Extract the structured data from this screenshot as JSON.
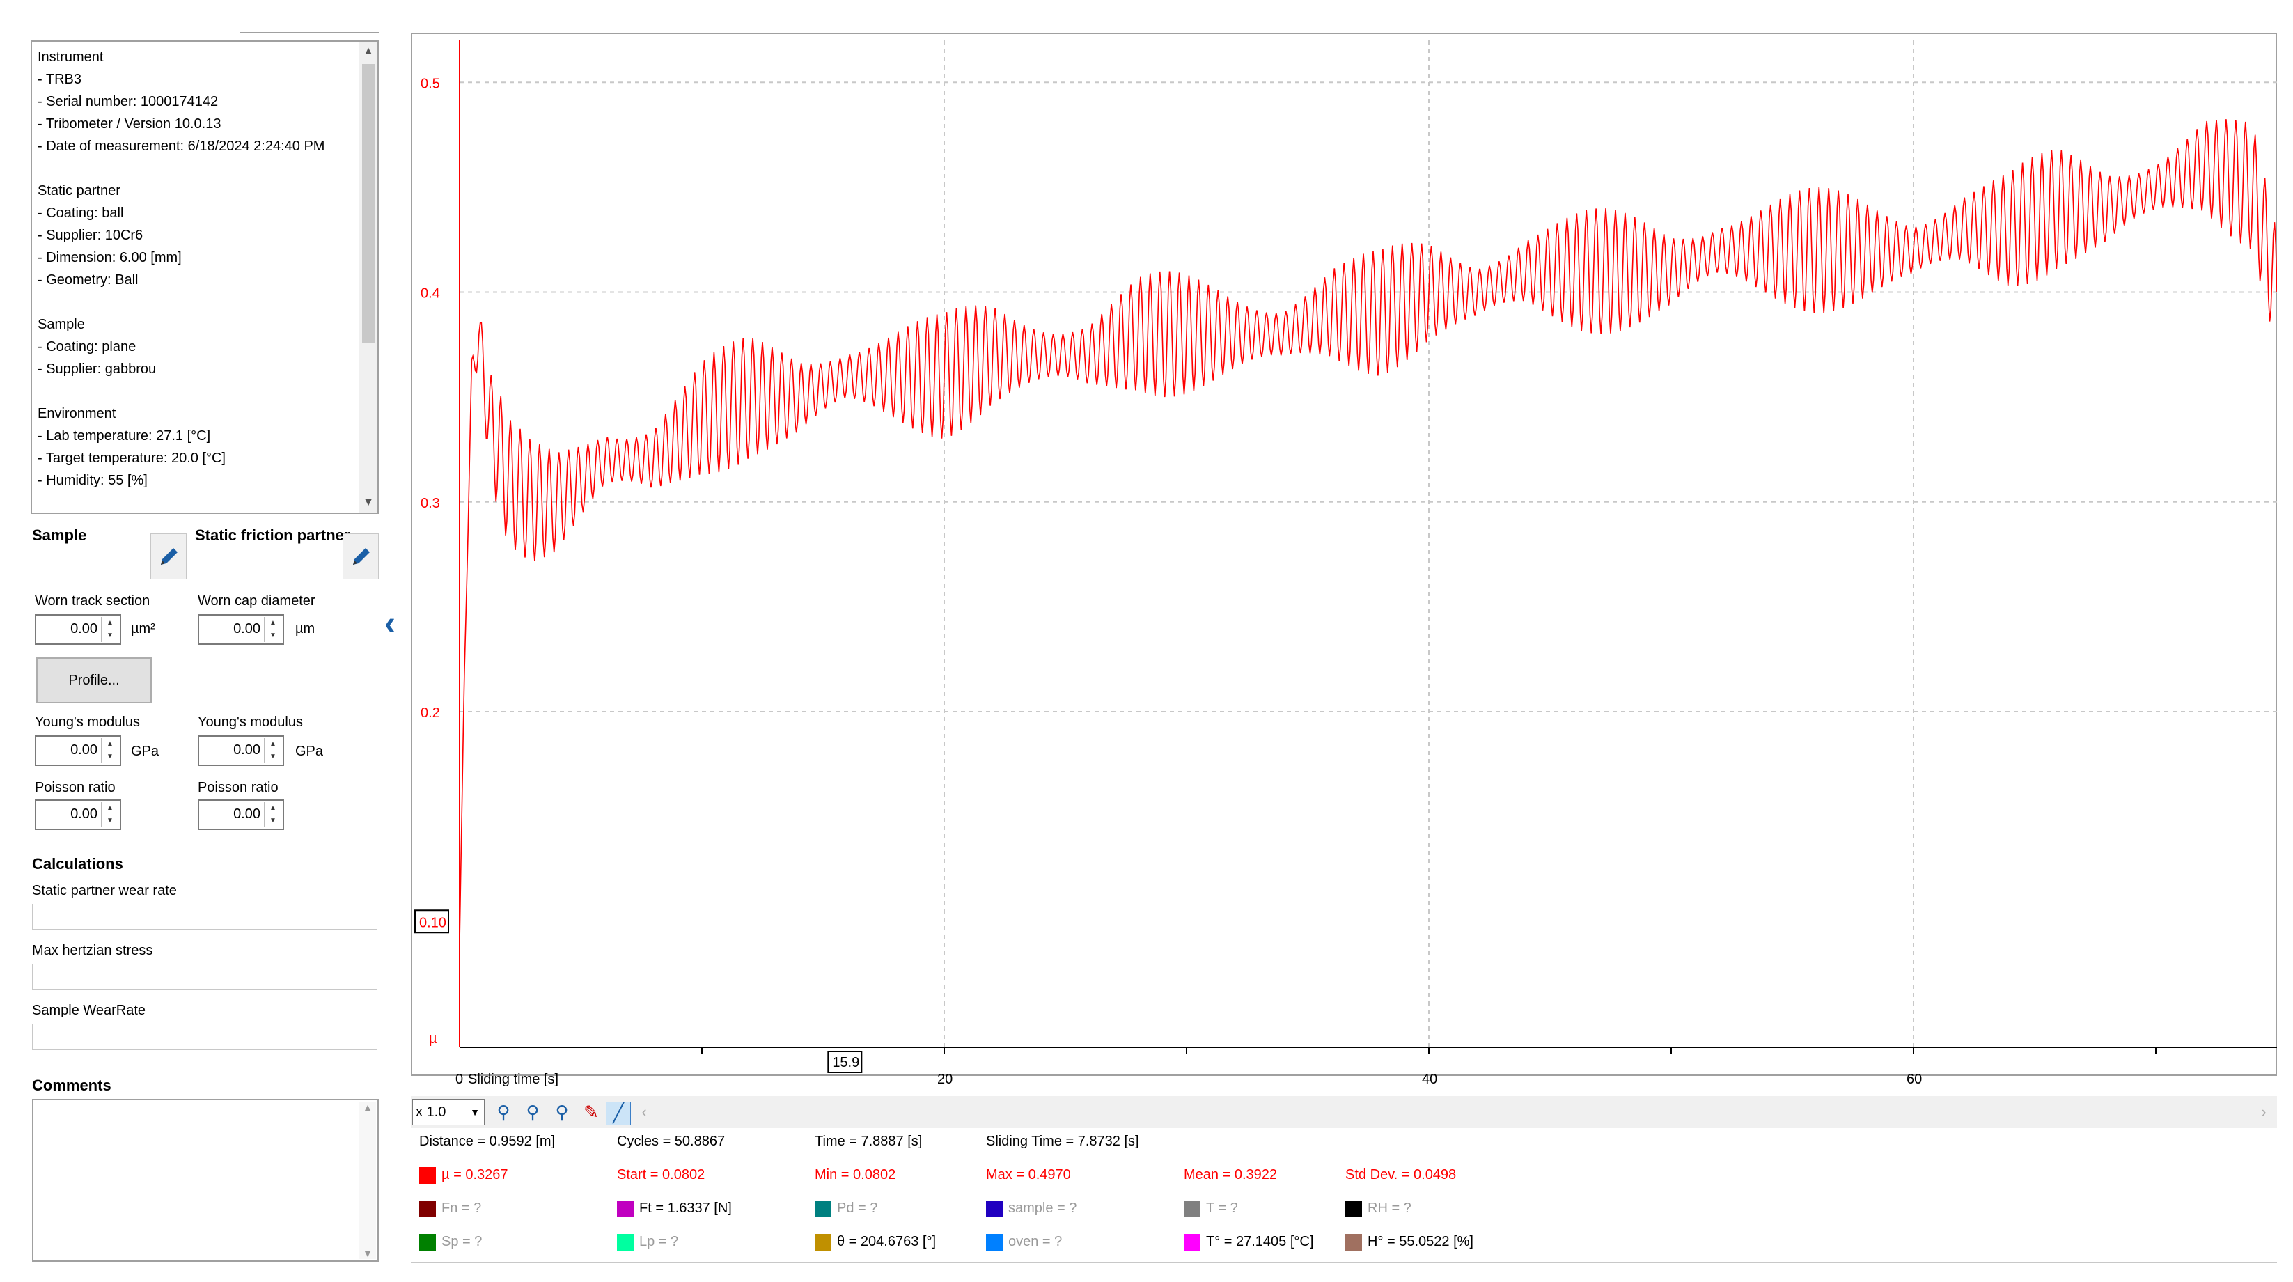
{
  "info": {
    "lines": [
      "Instrument",
      "- TRB3",
      "- Serial number: 1000174142",
      "- Tribometer / Version 10.0.13",
      "- Date of measurement: 6/18/2024 2:24:40 PM",
      "",
      "Static partner",
      "- Coating: ball",
      "- Supplier: 10Cr6",
      "- Dimension: 6.00 [mm]",
      "- Geometry: Ball",
      "",
      "Sample",
      "- Coating: plane",
      "- Supplier: gabbrou",
      "",
      "Environment",
      "- Lab temperature: 27.1 [°C]",
      "- Target temperature: 20.0 [°C]",
      "- Humidity: 55 [%]"
    ]
  },
  "sample": {
    "title": "Sample",
    "worn_track_label": "Worn track section",
    "worn_track_value": "0.00",
    "worn_track_unit": "µm²",
    "profile_button": "Profile...",
    "youngs_label": "Young's modulus",
    "youngs_value": "0.00",
    "youngs_unit": "GPa",
    "poisson_label": "Poisson ratio",
    "poisson_value": "0.00"
  },
  "partner": {
    "title": "Static friction partner",
    "worn_cap_label": "Worn cap diameter",
    "worn_cap_value": "0.00",
    "worn_cap_unit": "µm",
    "youngs_label": "Young's modulus",
    "youngs_value": "0.00",
    "youngs_unit": "GPa",
    "poisson_label": "Poisson ratio",
    "poisson_value": "0.00"
  },
  "calculations": {
    "title": "Calculations",
    "static_wear_label": "Static partner wear rate",
    "hertz_label": "Max hertzian stress",
    "sample_wear_label": "Sample WearRate"
  },
  "comments": {
    "title": "Comments"
  },
  "toolbar": {
    "zoom": "x 1.0"
  },
  "chart_data": {
    "type": "line",
    "xlabel": "Sliding time [s]",
    "ylabel": "µ",
    "xlim": [
      0,
      75
    ],
    "ylim": [
      0.04,
      0.52
    ],
    "x_ticks": [
      0,
      20,
      40,
      60
    ],
    "y_ticks": [
      0.2,
      0.3,
      0.4,
      0.5
    ],
    "grid": true,
    "cursor_x_label": "15.9",
    "cursor_y_label": "0.10",
    "color": "#ff0000",
    "series": [
      {
        "x": [
          0,
          0.2,
          0.5,
          0.8,
          1.2,
          2,
          3,
          4,
          5,
          6,
          8,
          10,
          12,
          14,
          16,
          18,
          20,
          22,
          24,
          26,
          28,
          30,
          32,
          34,
          36,
          38,
          40,
          42,
          44,
          46,
          48,
          50,
          52,
          54,
          56,
          58,
          60,
          62,
          64,
          66,
          68,
          70,
          72,
          74,
          75
        ],
        "y": [
          0.09,
          0.22,
          0.36,
          0.38,
          0.34,
          0.31,
          0.3,
          0.3,
          0.31,
          0.32,
          0.32,
          0.34,
          0.35,
          0.35,
          0.36,
          0.36,
          0.36,
          0.37,
          0.37,
          0.37,
          0.38,
          0.38,
          0.38,
          0.38,
          0.39,
          0.39,
          0.4,
          0.4,
          0.41,
          0.41,
          0.41,
          0.41,
          0.42,
          0.42,
          0.42,
          0.42,
          0.42,
          0.43,
          0.43,
          0.44,
          0.44,
          0.45,
          0.46,
          0.45,
          0.4
        ],
        "oscillation_amplitude": 0.025,
        "oscillation_period": 0.4
      }
    ]
  },
  "stats": {
    "distance": "Distance = 0.9592 [m]",
    "cycles": "Cycles = 50.8867",
    "time": "Time = 7.8887 [s]",
    "sliding_time": "Sliding Time = 7.8732 [s]",
    "mu": "µ = 0.3267",
    "start": "Start = 0.0802",
    "min": "Min = 0.0802",
    "max": "Max = 0.4970",
    "mean": "Mean = 0.3922",
    "std": "Std Dev. = 0.0498",
    "fn": "Fn = ?",
    "ft": "Ft = 1.6337 [N]",
    "pd": "Pd = ?",
    "sample": "sample = ?",
    "t": "T = ?",
    "rh": "RH = ?",
    "sp": "Sp = ?",
    "lp": "Lp = ?",
    "theta": "θ = 204.6763 [°]",
    "oven": "oven = ?",
    "tdeg": "T° = 27.1405 [°C]",
    "hdeg": "H° = 55.0522 [%]",
    "colors": {
      "mu": "#ff0000",
      "fn": "#800000",
      "sp": "#008000",
      "ft": "#c000c0",
      "lp": "#00ffa0",
      "pd": "#008080",
      "theta": "#c09000",
      "sample": "#2000c0",
      "oven": "#0080ff",
      "t": "#808080",
      "tdeg": "#ff00ff",
      "rh": "#000000",
      "hdeg": "#a07060"
    }
  }
}
